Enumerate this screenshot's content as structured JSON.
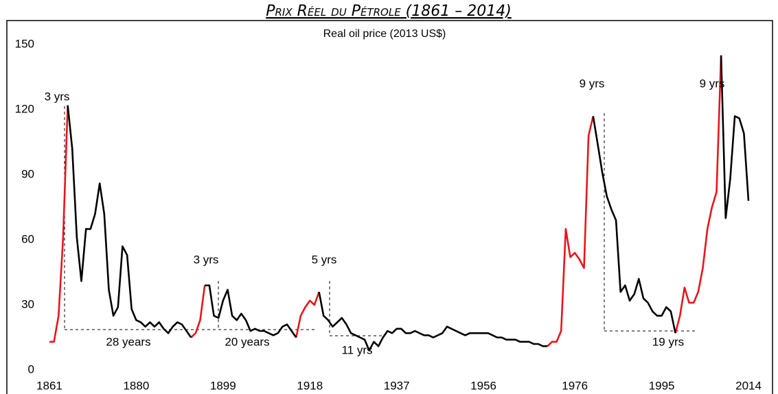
{
  "chart_data": {
    "type": "line",
    "title": "Prix Réel du Pétrole (1861 – 2014)",
    "subtitle": "Real oil price (2013 US$)",
    "x": [
      1861,
      1862,
      1863,
      1864,
      1865,
      1866,
      1867,
      1868,
      1869,
      1870,
      1871,
      1872,
      1873,
      1874,
      1875,
      1876,
      1877,
      1878,
      1879,
      1880,
      1881,
      1882,
      1883,
      1884,
      1885,
      1886,
      1887,
      1888,
      1889,
      1890,
      1891,
      1892,
      1893,
      1894,
      1895,
      1896,
      1897,
      1898,
      1899,
      1900,
      1901,
      1902,
      1903,
      1904,
      1905,
      1906,
      1907,
      1908,
      1909,
      1910,
      1911,
      1912,
      1913,
      1914,
      1915,
      1916,
      1917,
      1918,
      1919,
      1920,
      1921,
      1922,
      1923,
      1924,
      1925,
      1926,
      1927,
      1928,
      1929,
      1930,
      1931,
      1932,
      1933,
      1934,
      1935,
      1936,
      1937,
      1938,
      1939,
      1940,
      1941,
      1942,
      1943,
      1944,
      1945,
      1946,
      1947,
      1948,
      1949,
      1950,
      1951,
      1952,
      1953,
      1954,
      1955,
      1956,
      1957,
      1958,
      1959,
      1960,
      1961,
      1962,
      1963,
      1964,
      1965,
      1966,
      1967,
      1968,
      1969,
      1970,
      1971,
      1972,
      1973,
      1974,
      1975,
      1976,
      1977,
      1978,
      1979,
      1980,
      1981,
      1982,
      1983,
      1984,
      1985,
      1986,
      1987,
      1988,
      1989,
      1990,
      1991,
      1992,
      1993,
      1994,
      1995,
      1996,
      1997,
      1998,
      1999,
      2000,
      2001,
      2002,
      2003,
      2004,
      2005,
      2006,
      2007,
      2008,
      2009,
      2010,
      2011,
      2012,
      2013,
      2014
    ],
    "series": [
      {
        "color": "#e8141a",
        "values": [
          13,
          13,
          25,
          61,
          122,
          null,
          null,
          null,
          null,
          null,
          null,
          null,
          null,
          null,
          null,
          null,
          null,
          null,
          null,
          null,
          null,
          null,
          null,
          null,
          null,
          null,
          null,
          null,
          null,
          null,
          null,
          15,
          17,
          23,
          39,
          null,
          null,
          null,
          null,
          null,
          null,
          null,
          null,
          null,
          null,
          null,
          null,
          null,
          null,
          null,
          null,
          null,
          null,
          null,
          15,
          25,
          29,
          32,
          30,
          36,
          null,
          null,
          null,
          null,
          null,
          null,
          null,
          null,
          null,
          null,
          null,
          null,
          null,
          null,
          null,
          null,
          null,
          null,
          null,
          null,
          null,
          null,
          null,
          null,
          null,
          null,
          null,
          null,
          null,
          null,
          null,
          null,
          null,
          null,
          null,
          null,
          null,
          null,
          null,
          null,
          null,
          null,
          null,
          null,
          null,
          null,
          null,
          null,
          null,
          11,
          13,
          13,
          18,
          65,
          52,
          54,
          51,
          47,
          108,
          117,
          null,
          null,
          null,
          null,
          null,
          null,
          null,
          null,
          null,
          null,
          null,
          null,
          null,
          null,
          null,
          null,
          null,
          17,
          25,
          38,
          31,
          31,
          36,
          47,
          65,
          75,
          82,
          145,
          null,
          null,
          null,
          null,
          null,
          null
        ]
      },
      {
        "color": "#000000",
        "values": [
          null,
          null,
          null,
          null,
          122,
          102,
          61,
          41,
          65,
          65,
          72,
          86,
          72,
          37,
          25,
          29,
          57,
          53,
          28,
          23,
          22,
          20,
          22,
          20,
          22,
          19,
          17,
          20,
          22,
          21,
          18,
          15,
          null,
          null,
          39,
          39,
          25,
          24,
          32,
          37,
          25,
          23,
          26,
          23,
          18,
          19,
          18,
          18,
          17,
          16,
          17,
          20,
          21,
          18,
          15,
          null,
          null,
          null,
          null,
          36,
          25,
          23,
          20,
          22,
          24,
          21,
          17,
          16,
          15,
          14,
          9,
          13,
          11,
          15,
          18,
          17,
          19,
          19,
          17,
          17,
          18,
          17,
          16,
          16,
          15,
          16,
          17,
          20,
          19,
          18,
          17,
          16,
          17,
          17,
          17,
          17,
          17,
          16,
          15,
          15,
          14,
          14,
          14,
          13,
          13,
          13,
          12,
          12,
          11,
          11,
          null,
          null,
          null,
          null,
          null,
          null,
          null,
          null,
          null,
          117,
          104,
          91,
          80,
          74,
          69,
          36,
          39,
          32,
          35,
          42,
          33,
          31,
          27,
          25,
          25,
          29,
          27,
          17,
          null,
          null,
          null,
          null,
          null,
          null,
          null,
          null,
          null,
          145,
          70,
          88,
          117,
          116,
          109,
          78
        ]
      }
    ],
    "xlim": [
      1858,
      2017
    ],
    "xticks": [
      1861,
      1880,
      1899,
      1918,
      1937,
      1956,
      1976,
      1995,
      2014
    ],
    "ylim": [
      0,
      150
    ],
    "yticks": [
      0,
      30,
      60,
      90,
      120,
      150
    ],
    "annotations": [
      "3 yrs",
      "28 years",
      "3 yrs",
      "20 years",
      "5 yrs",
      "11 yrs",
      "9 yrs",
      "9 yrs",
      "19 yrs"
    ]
  }
}
